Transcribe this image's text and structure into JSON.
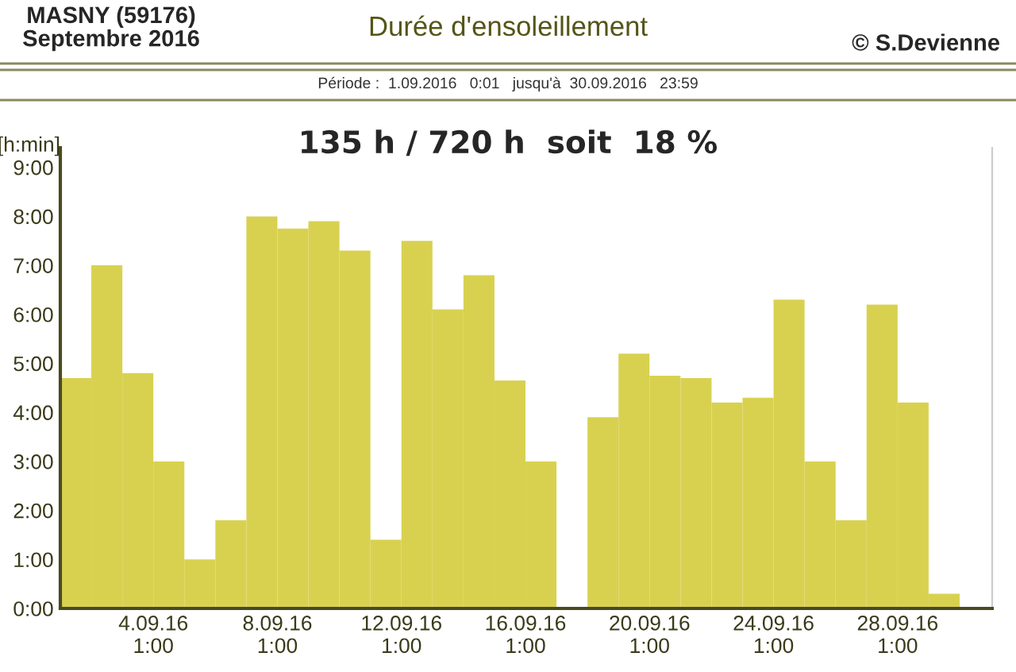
{
  "chart_data": {
    "type": "bar",
    "title": "Durée d'ensoleillement",
    "subtitle": "Période :  1.09.2016   0:01   jusqu'à  30.09.2016   23:59",
    "ylabel": "[h:min]",
    "annotations": [
      "MASNY (59176)\nSeptembre 2016",
      "© S.Devienne",
      "135 h / 720 h  soit  18 %"
    ],
    "categories": [
      null,
      null,
      null,
      "4.09.16\n1:00",
      null,
      null,
      null,
      "8.09.16\n1:00",
      null,
      null,
      null,
      "12.09.16\n1:00",
      null,
      null,
      null,
      "16.09.16\n1:00",
      null,
      null,
      null,
      "20.09.16\n1:00",
      null,
      null,
      null,
      "24.09.16\n1:00",
      null,
      null,
      null,
      "28.09.16\n1:00",
      null,
      null
    ],
    "values": [
      4.7,
      7.0,
      4.8,
      3.0,
      1.0,
      1.8,
      8.0,
      7.75,
      7.9,
      7.3,
      1.4,
      7.5,
      6.1,
      6.8,
      4.65,
      3.0,
      0,
      3.9,
      5.2,
      4.75,
      4.7,
      4.2,
      4.3,
      6.3,
      3.0,
      1.8,
      6.2,
      4.2,
      0.3,
      null
    ],
    "color": "#d8d150",
    "ylim": [
      0,
      9.4
    ],
    "yticks": [
      {
        "value": 0,
        "label": "0:00"
      },
      {
        "value": 1,
        "label": "1:00"
      },
      {
        "value": 2,
        "label": "2:00"
      },
      {
        "value": 3,
        "label": "3:00"
      },
      {
        "value": 4,
        "label": "4:00"
      },
      {
        "value": 5,
        "label": "5:00"
      },
      {
        "value": 6,
        "label": "6:00"
      },
      {
        "value": 7,
        "label": "7:00"
      },
      {
        "value": 8,
        "label": "8:00"
      },
      {
        "value": 9,
        "label": "9:00"
      }
    ],
    "grid": false,
    "legend": false
  }
}
